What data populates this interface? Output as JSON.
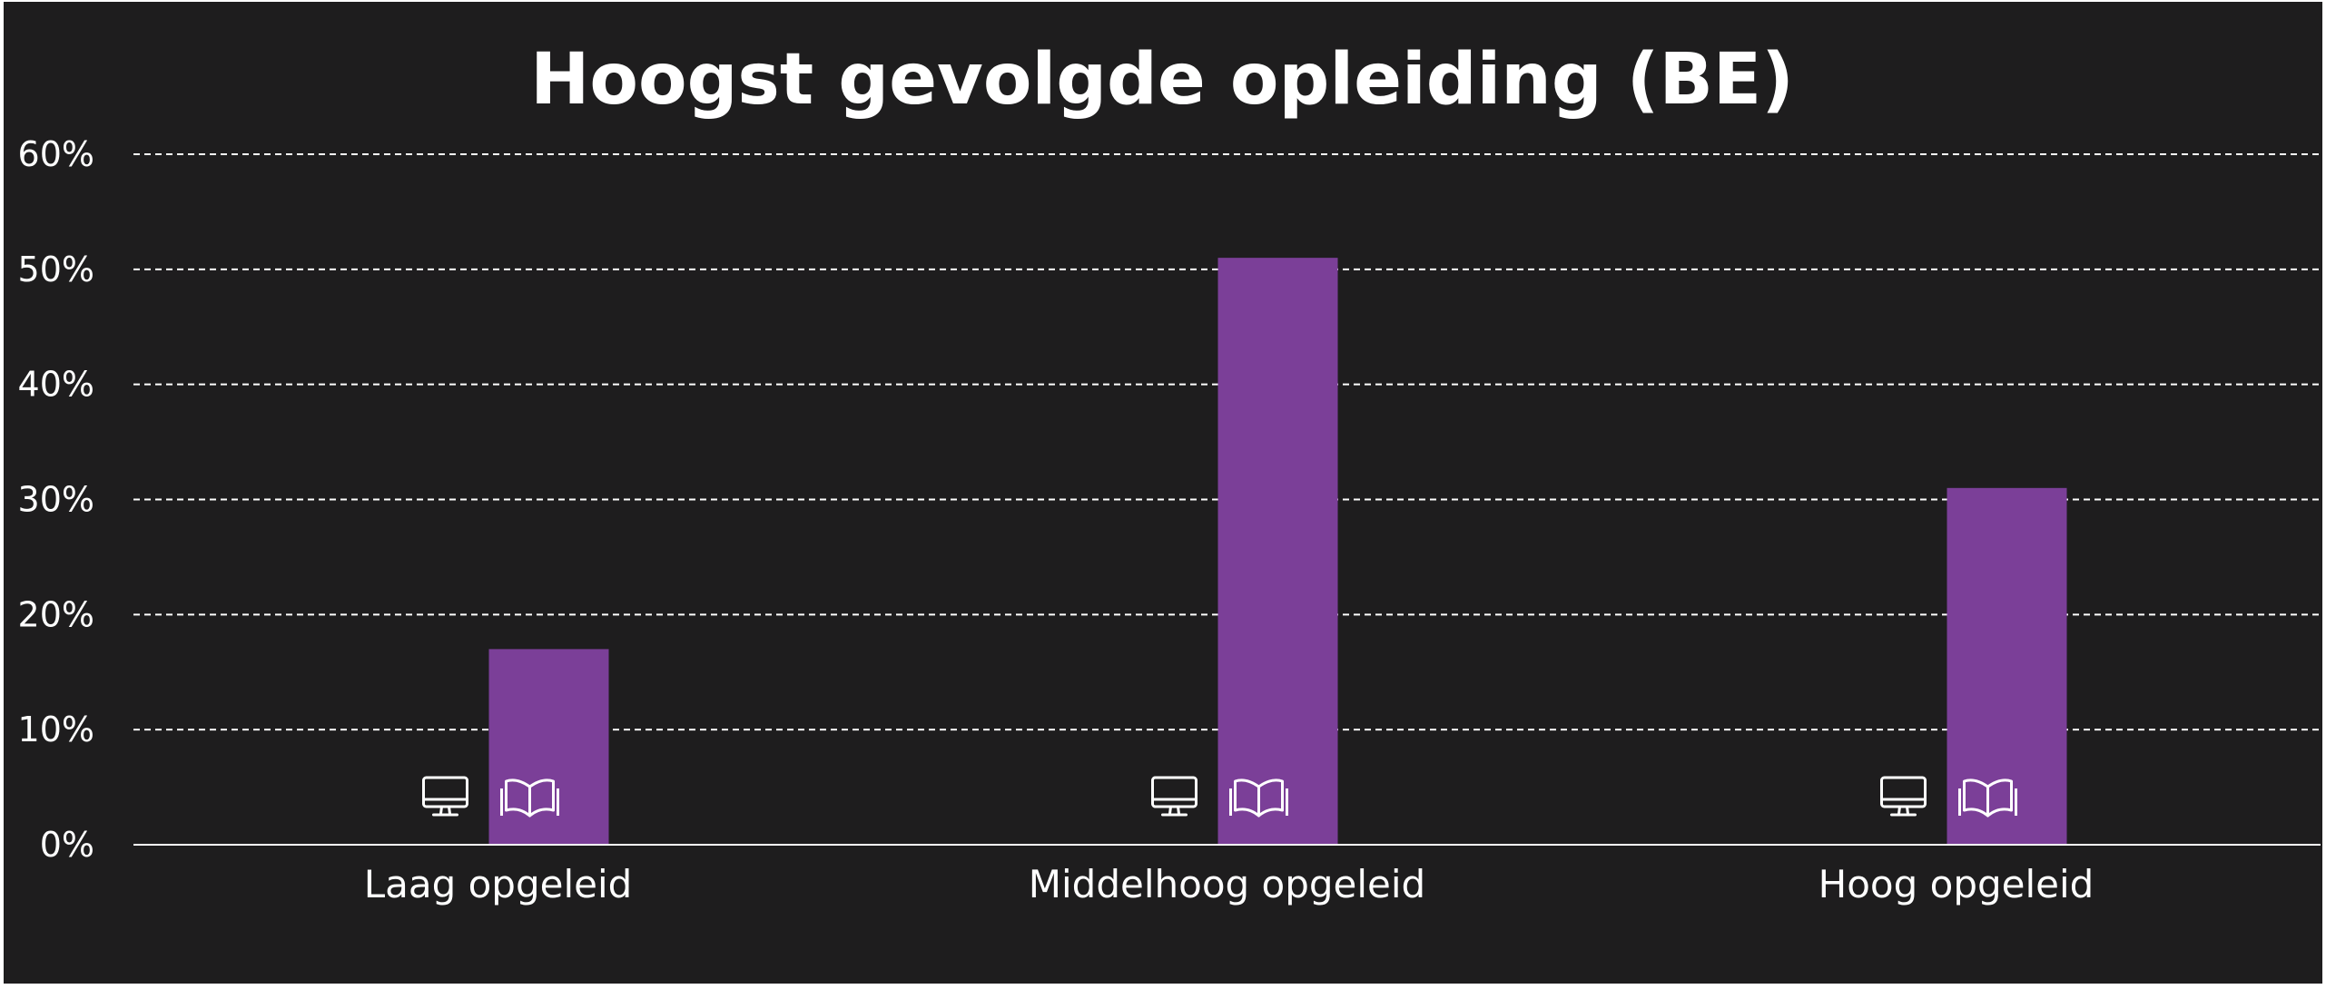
{
  "chart_data": {
    "type": "bar",
    "title": "Hoogst gevolgde opleiding (BE)",
    "categories": [
      "Laag opgeleid",
      "Middelhoog opgeleid",
      "Hoog opgeleid"
    ],
    "series": [
      {
        "values": [
          0,
          0,
          0
        ],
        "color": "#7b3f98",
        "icon": "monitor-icon"
      },
      {
        "values": [
          17,
          51,
          31
        ],
        "color": "#7b3f98",
        "icon": "open-book-icon"
      }
    ],
    "ylim": [
      0,
      60
    ],
    "yticks": [
      "0%",
      "10%",
      "20%",
      "30%",
      "40%",
      "50%",
      "60%"
    ],
    "ytick_values": [
      0,
      10,
      20,
      30,
      40,
      50,
      60
    ],
    "grid": true,
    "legend": "none"
  },
  "colors": {
    "background": "#1e1d1e",
    "gridline": "#ffffff",
    "text": "#ffffff",
    "bar": "#7b3f98"
  }
}
